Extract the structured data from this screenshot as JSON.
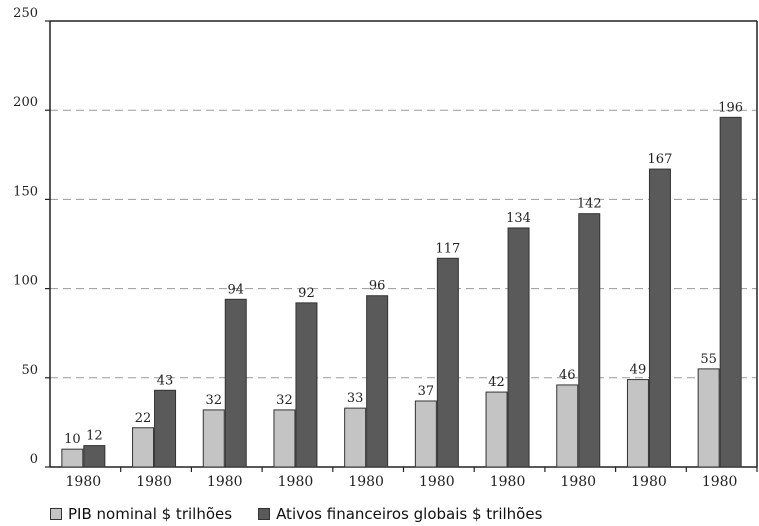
{
  "chart_data": {
    "type": "bar",
    "categories": [
      "1980",
      "1980",
      "1980",
      "1980",
      "1980",
      "1980",
      "1980",
      "1980",
      "1980",
      "1980"
    ],
    "series": [
      {
        "name": "PIB nominal $ trilhões",
        "values": [
          10,
          22,
          32,
          32,
          33,
          37,
          42,
          46,
          49,
          55
        ],
        "color": "#c4c4c4"
      },
      {
        "name": "Ativos financeiros globais $ trilhões",
        "values": [
          12,
          43,
          94,
          92,
          96,
          117,
          134,
          142,
          167,
          196
        ],
        "color": "#5a5a5a"
      }
    ],
    "ylim": [
      0,
      250
    ],
    "yticks": [
      "0",
      "50",
      "100",
      "150",
      "200",
      "250"
    ],
    "grid": true,
    "legend_position": "bottom-left"
  }
}
